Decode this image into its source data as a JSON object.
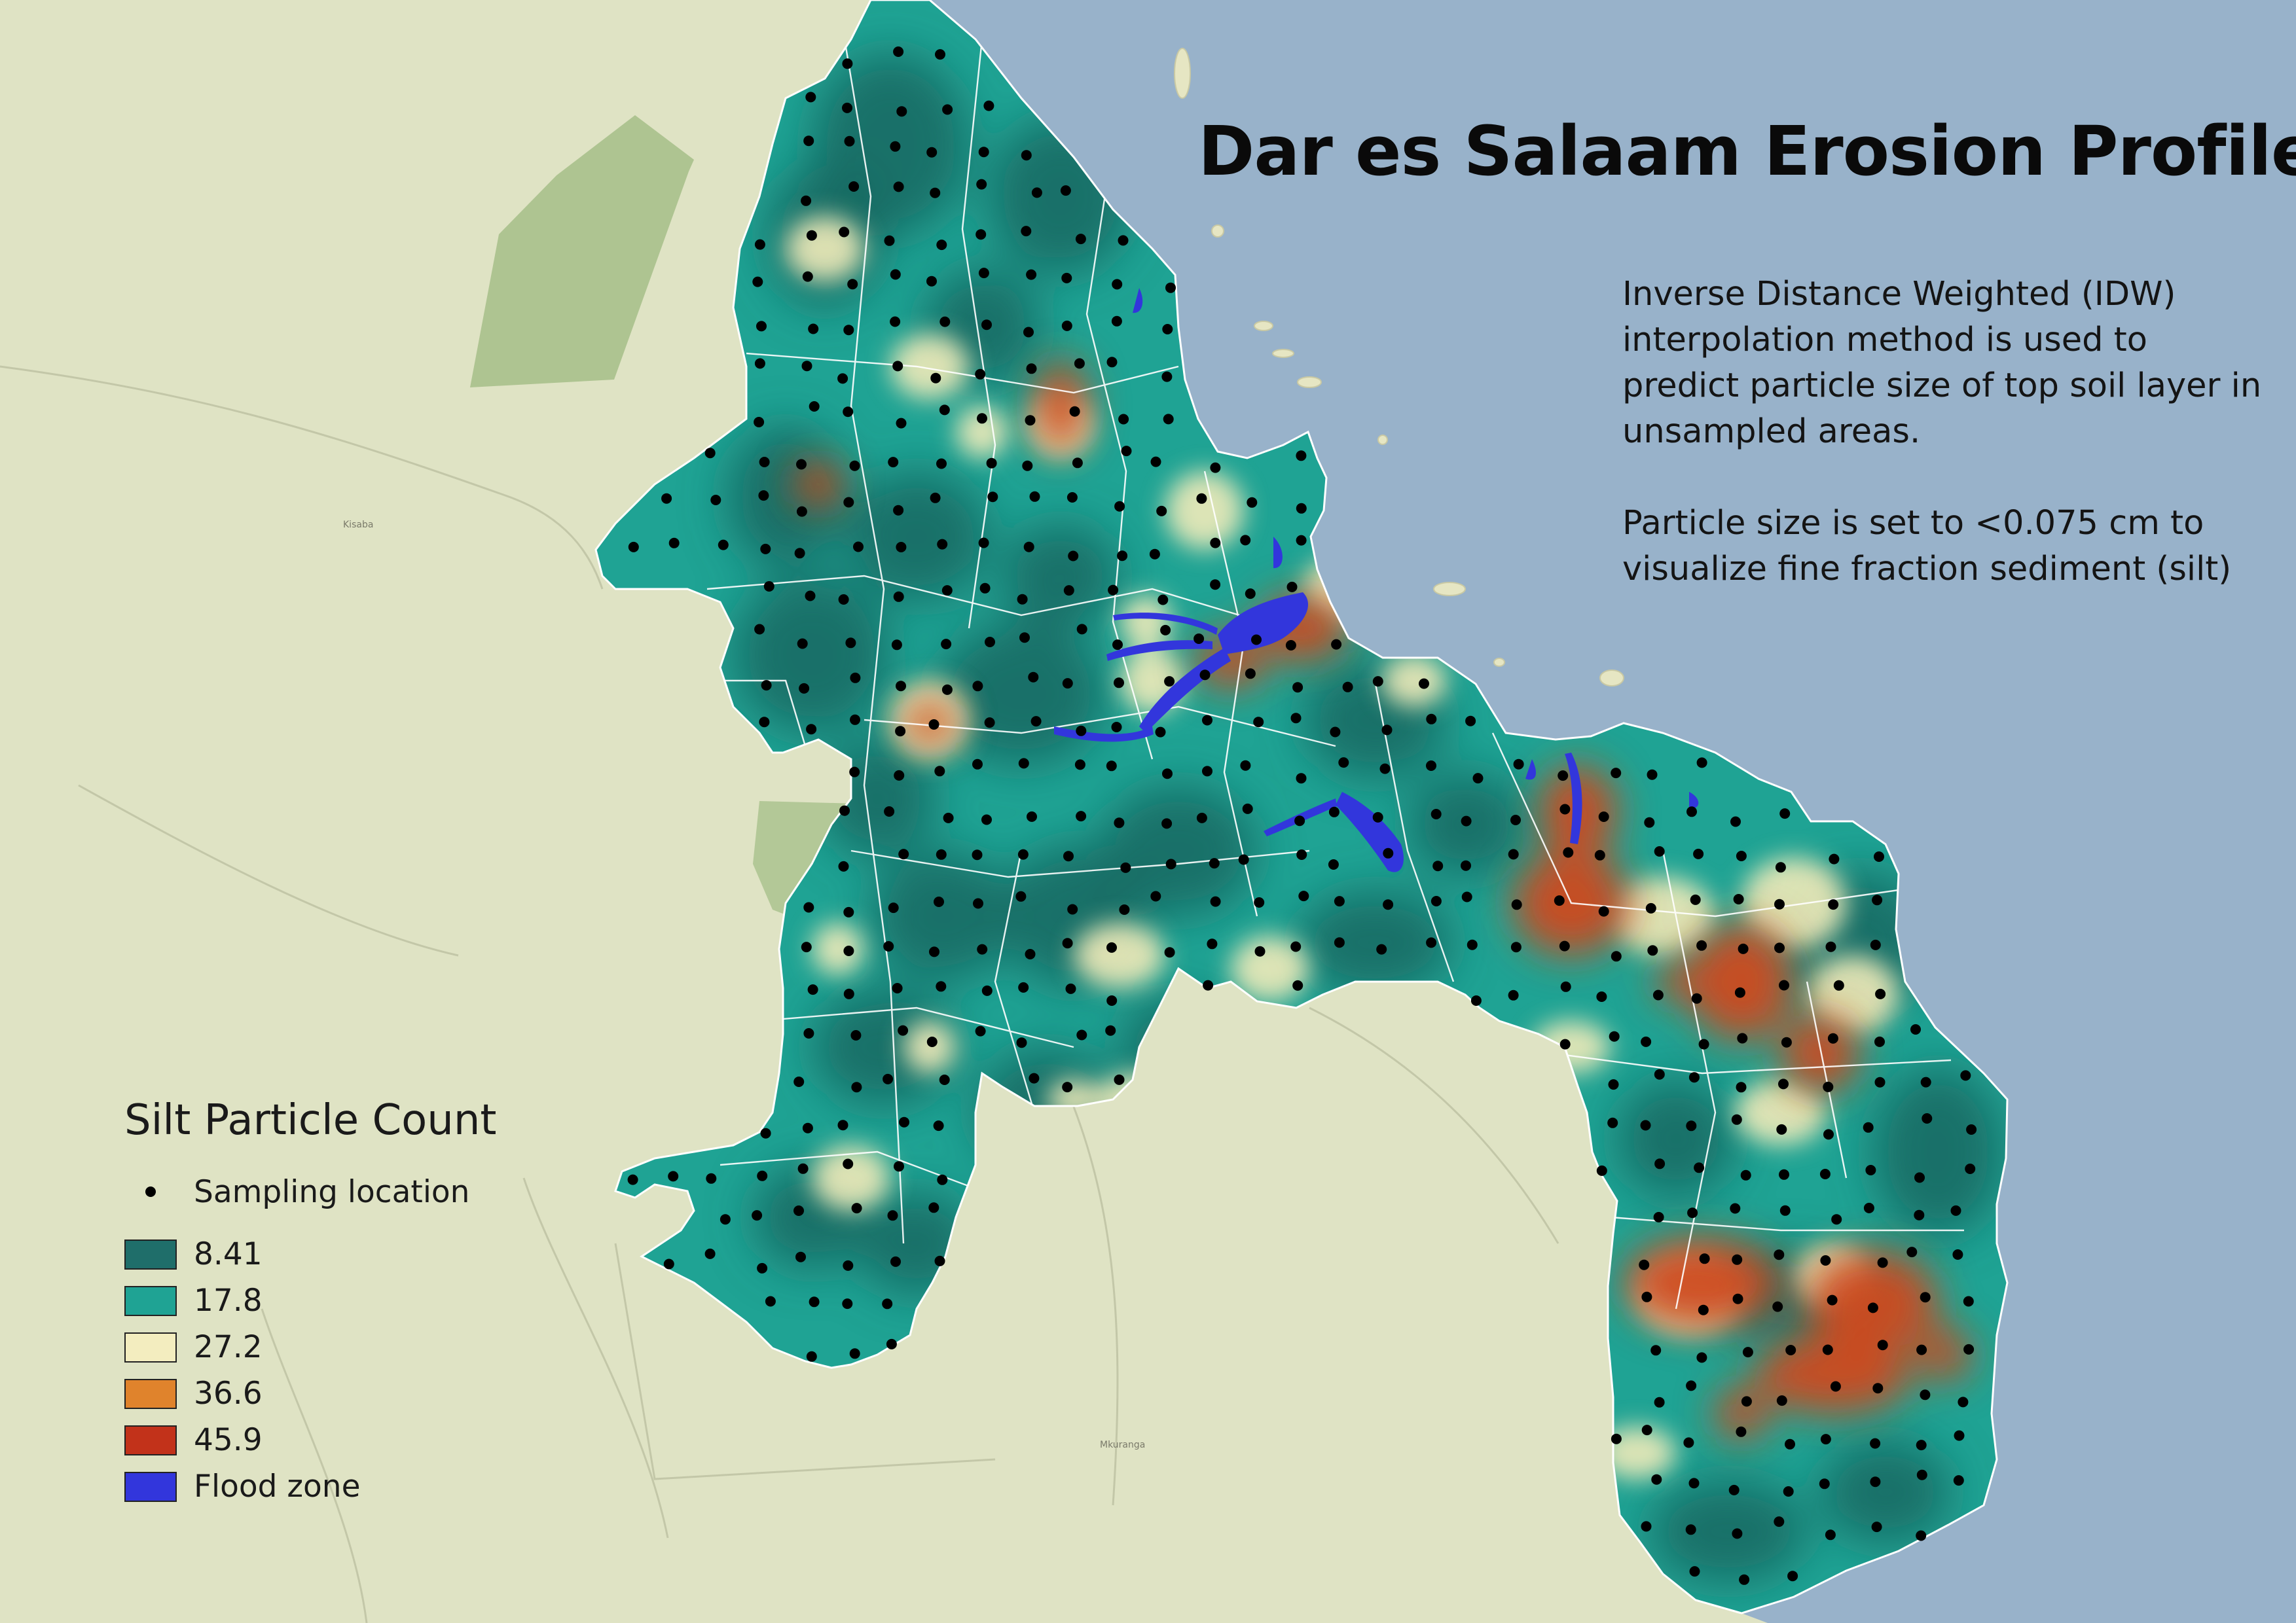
{
  "map": {
    "title": "Dar es Salaam Erosion Profile",
    "description": [
      "Inverse Distance Weighted (IDW) interpolation method is used to predict particle size of top soil layer in unsampled areas.",
      "Particle size is set to <0.075 cm to visualize fine fraction sediment (silt)"
    ],
    "place_labels": [
      "Kisaba",
      "Mkuranga"
    ],
    "colors": {
      "basemap_land": "#dfe3c4",
      "sea": "#98b2ca",
      "forest": "#a8c08c",
      "flood": "#3236dc",
      "boundary": "#ffffff"
    }
  },
  "legend": {
    "title": "Silt Particle Count",
    "point_item": {
      "label": "Sampling location",
      "icon": "black-dot"
    },
    "classes": [
      {
        "label": "8.41",
        "color": "#1f6e6a"
      },
      {
        "label": "17.8",
        "color": "#1fa394"
      },
      {
        "label": "27.2",
        "color": "#f3edbf"
      },
      {
        "label": "36.6",
        "color": "#e0832c"
      },
      {
        "label": "45.9",
        "color": "#c2321a"
      }
    ],
    "flood_item": {
      "label": "Flood zone",
      "color": "#3236dc"
    }
  }
}
